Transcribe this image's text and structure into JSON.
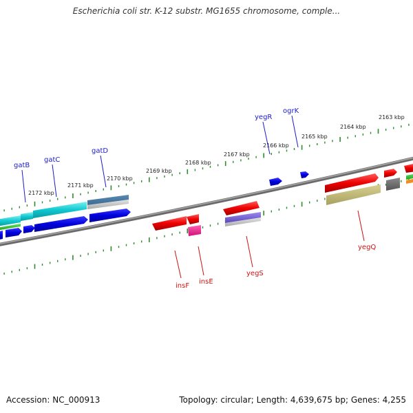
{
  "title": "Escherichia coli str. K-12 substr. MG1655 chromosome, comple...",
  "footer": {
    "accession": "Accession: NC_000913",
    "stats": "Topology: circular; Length: 4,639,675 bp; Genes: 4,255"
  },
  "colors": {
    "backbone": "#7a7a7a",
    "forward_label": "#1a1acc",
    "reverse_label": "#cc1111",
    "tick": "#2e8b2e"
  },
  "kbp_labels": [
    "2172 kbp",
    "2171 kbp",
    "2170 kbp",
    "2169 kbp",
    "2168 kbp",
    "2167 kbp",
    "2166 kbp",
    "2165 kbp",
    "2164 kbp",
    "2163 kbp"
  ],
  "genes": {
    "forward": [
      {
        "name": "gatB",
        "color": "#1a1acc"
      },
      {
        "name": "gatC",
        "color": "#1a1acc"
      },
      {
        "name": "gatD",
        "color": "#1a1acc"
      },
      {
        "name": "yegR",
        "color": "#1a1acc"
      },
      {
        "name": "ogrK",
        "color": "#1a1acc"
      }
    ],
    "reverse": [
      {
        "name": "insF",
        "color": "#cc1111"
      },
      {
        "name": "insE",
        "color": "#cc1111"
      },
      {
        "name": "yegS",
        "color": "#cc1111"
      },
      {
        "name": "yegQ",
        "color": "#cc1111"
      }
    ]
  }
}
